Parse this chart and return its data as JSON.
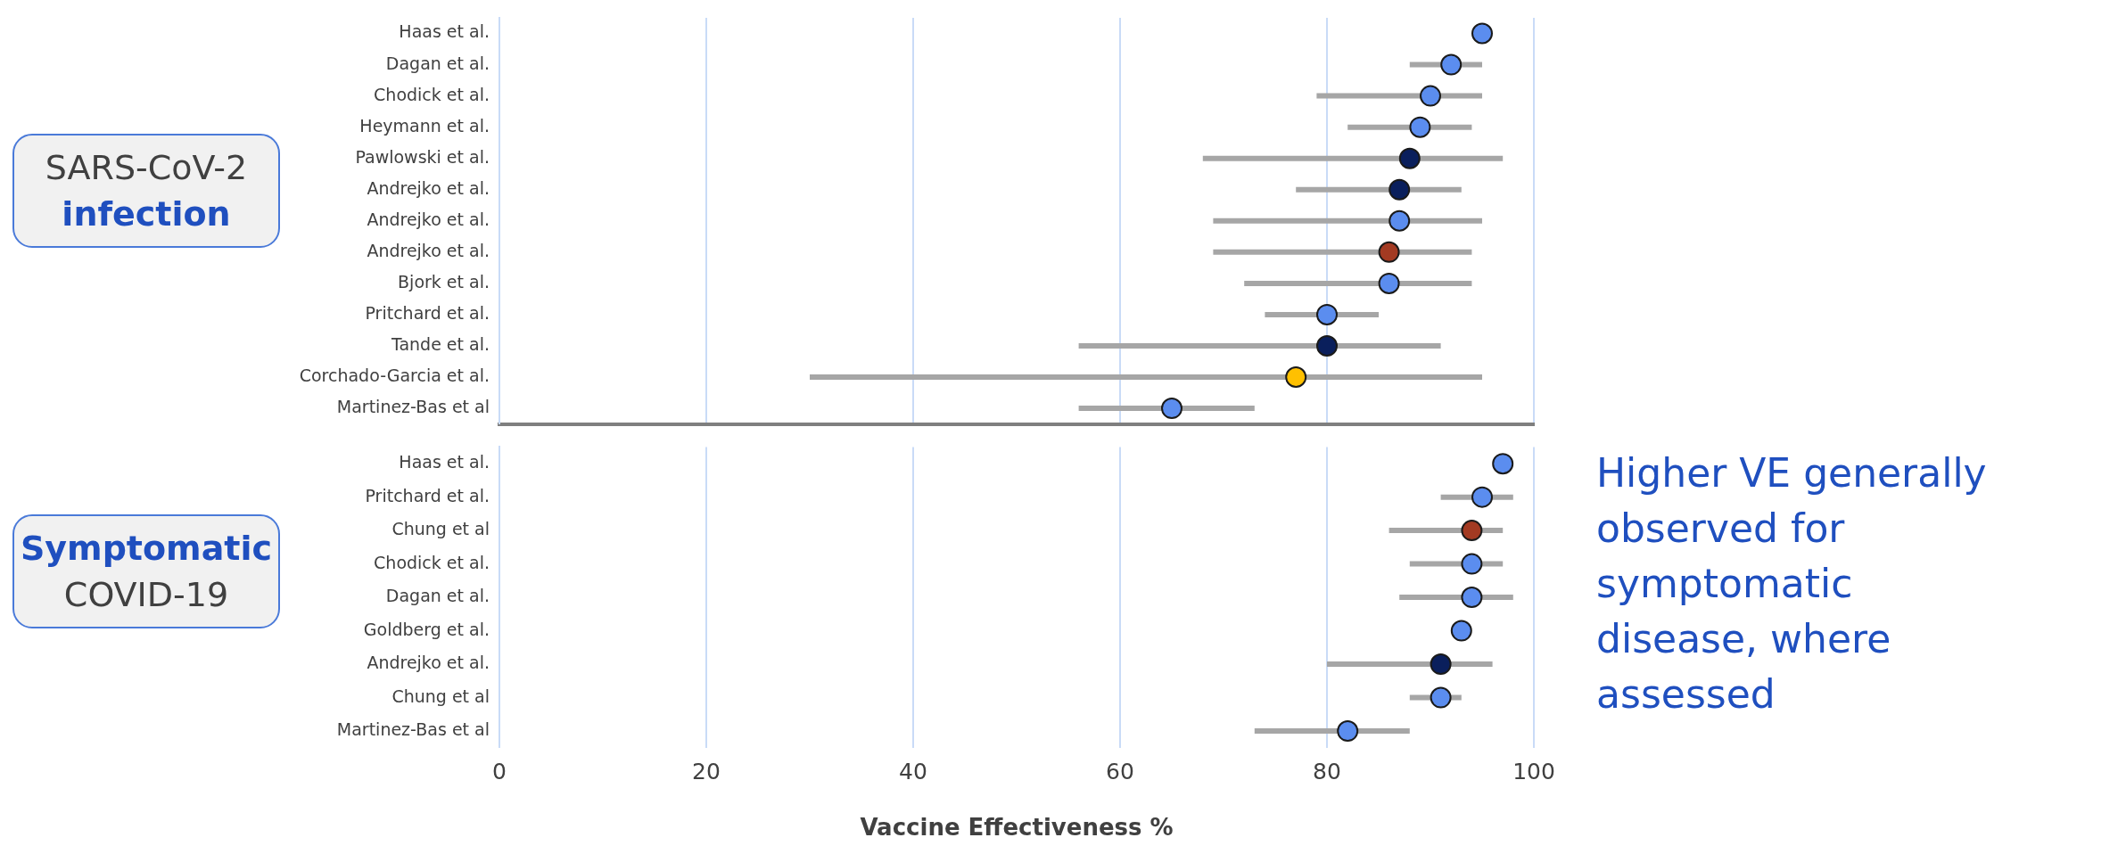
{
  "chart_data": [
    {
      "type": "scatter",
      "orientation": "horizontal",
      "ylabel": "SARS-CoV-2\ninfection",
      "categories": [
        "Haas et al.",
        "Dagan et al.",
        "Chodick et al.",
        "Heymann et al.",
        "Pawlowski et al.",
        "Andrejko et al.",
        "Andrejko et al.",
        "Andrejko et al.",
        "Bjork et al.",
        "Pritchard et al.",
        "Tande et al.",
        "Corchado-Garcia et al.",
        "Martinez-Bas et al"
      ],
      "values": [
        95,
        92,
        90,
        89,
        88,
        87,
        87,
        86,
        86,
        80,
        80,
        77,
        65
      ],
      "errors": [
        null,
        [
          88,
          95
        ],
        [
          79,
          95
        ],
        [
          82,
          94
        ],
        [
          68,
          97
        ],
        [
          77,
          93
        ],
        [
          69,
          95
        ],
        [
          69,
          94
        ],
        [
          72,
          94
        ],
        [
          74,
          85
        ],
        [
          56,
          91
        ],
        [
          30,
          95
        ],
        [
          56,
          73
        ]
      ],
      "colors": [
        "#5b8def",
        "#5b8def",
        "#5b8def",
        "#5b8def",
        "#0a1f5c",
        "#0a1f5c",
        "#5b8def",
        "#a33a22",
        "#5b8def",
        "#5b8def",
        "#0a1f5c",
        "#ffc000",
        "#5b8def"
      ],
      "xlim": [
        0,
        100
      ],
      "xticks": [
        0,
        20,
        40,
        60,
        80,
        100
      ],
      "grid": "x",
      "tick_labels": "y",
      "marker": "circle"
    },
    {
      "type": "scatter",
      "orientation": "horizontal",
      "ylabel": "Symptomatic\nCOVID-19",
      "xlabel": "Vaccine Effectiveness %",
      "categories": [
        "Haas et al.",
        "Pritchard et al.",
        "Chung et al",
        "Chodick et al.",
        "Dagan et al.",
        "Goldberg et al.",
        "Andrejko et al.",
        "Chung et al",
        "Martinez-Bas et al"
      ],
      "values": [
        97,
        95,
        94,
        94,
        94,
        93,
        91,
        91,
        82
      ],
      "errors": [
        null,
        [
          91,
          98
        ],
        [
          86,
          97
        ],
        [
          88,
          97
        ],
        [
          87,
          98
        ],
        null,
        [
          80,
          96
        ],
        [
          88,
          93
        ],
        [
          73,
          88
        ]
      ],
      "colors": [
        "#5b8def",
        "#5b8def",
        "#a33a22",
        "#5b8def",
        "#5b8def",
        "#5b8def",
        "#0a1f5c",
        "#5b8def",
        "#5b8def"
      ],
      "xlim": [
        0,
        100
      ],
      "xticks": [
        0,
        20,
        40,
        60,
        80,
        100
      ],
      "grid": "x",
      "marker": "circle",
      "annotations": [
        "Higher VE generally observed for symptomatic disease, where assessed"
      ]
    }
  ]
}
